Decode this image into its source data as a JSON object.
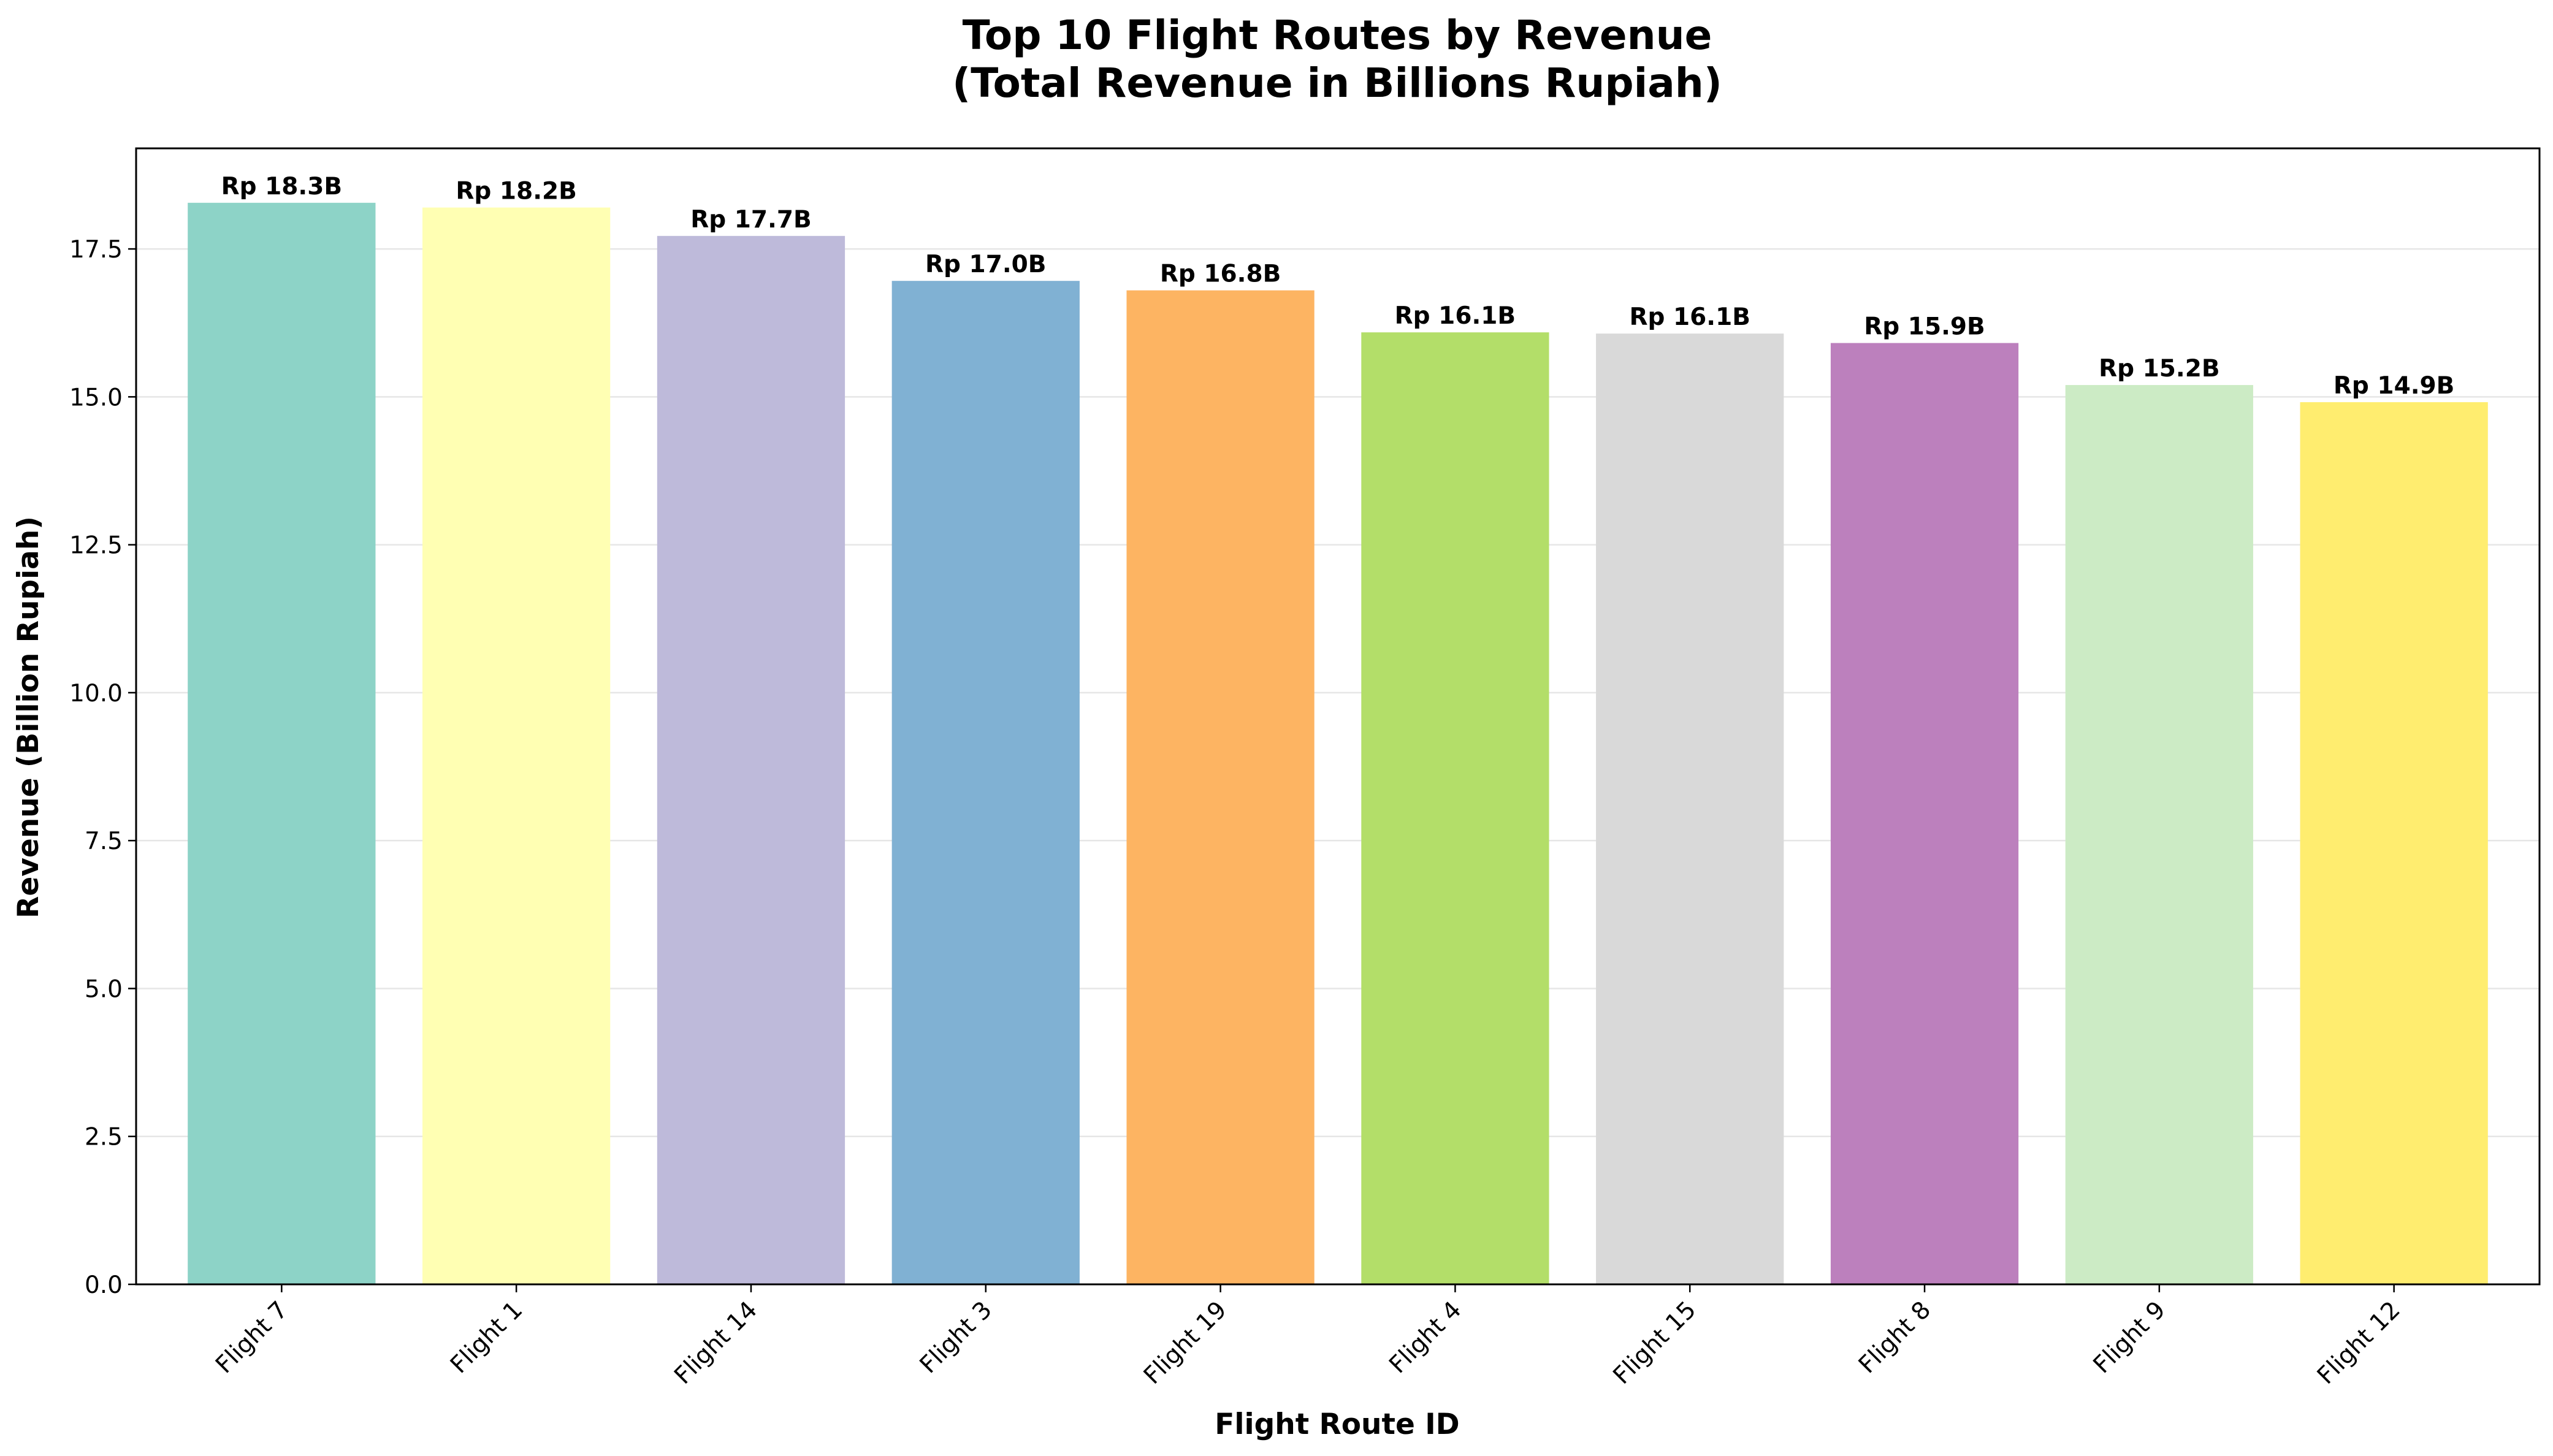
{
  "chart_data": {
    "type": "bar",
    "title": "Top 10 Flight Routes by Revenue",
    "subtitle": "(Total Revenue in Billions Rupiah)",
    "xlabel": "Flight Route ID",
    "ylabel": "Revenue (Billion Rupiah)",
    "categories": [
      "Flight 7",
      "Flight 1",
      "Flight 14",
      "Flight 3",
      "Flight 19",
      "Flight 4",
      "Flight 15",
      "Flight 8",
      "Flight 9",
      "Flight 12"
    ],
    "values": [
      18.28,
      18.2,
      17.72,
      16.96,
      16.8,
      16.09,
      16.07,
      15.91,
      15.2,
      14.91
    ],
    "data_labels": [
      "Rp 18.3B",
      "Rp 18.2B",
      "Rp 17.7B",
      "Rp 17.0B",
      "Rp 16.8B",
      "Rp 16.1B",
      "Rp 16.1B",
      "Rp 15.9B",
      "Rp 15.2B",
      "Rp 14.9B"
    ],
    "colors": [
      "#8dd3c7",
      "#ffffb3",
      "#bebada",
      "#80b1d3",
      "#fdb462",
      "#b3de69",
      "#d9d9d9",
      "#bc80bd",
      "#ccebc5",
      "#ffed6f"
    ],
    "yticks": [
      0.0,
      2.5,
      5.0,
      7.5,
      10.0,
      12.5,
      15.0,
      17.5
    ],
    "ytick_labels": [
      "0.0",
      "2.5",
      "5.0",
      "7.5",
      "10.0",
      "12.5",
      "15.0",
      "17.5"
    ],
    "ylim": [
      0,
      19.2
    ],
    "grid": "y",
    "legend": "none"
  }
}
